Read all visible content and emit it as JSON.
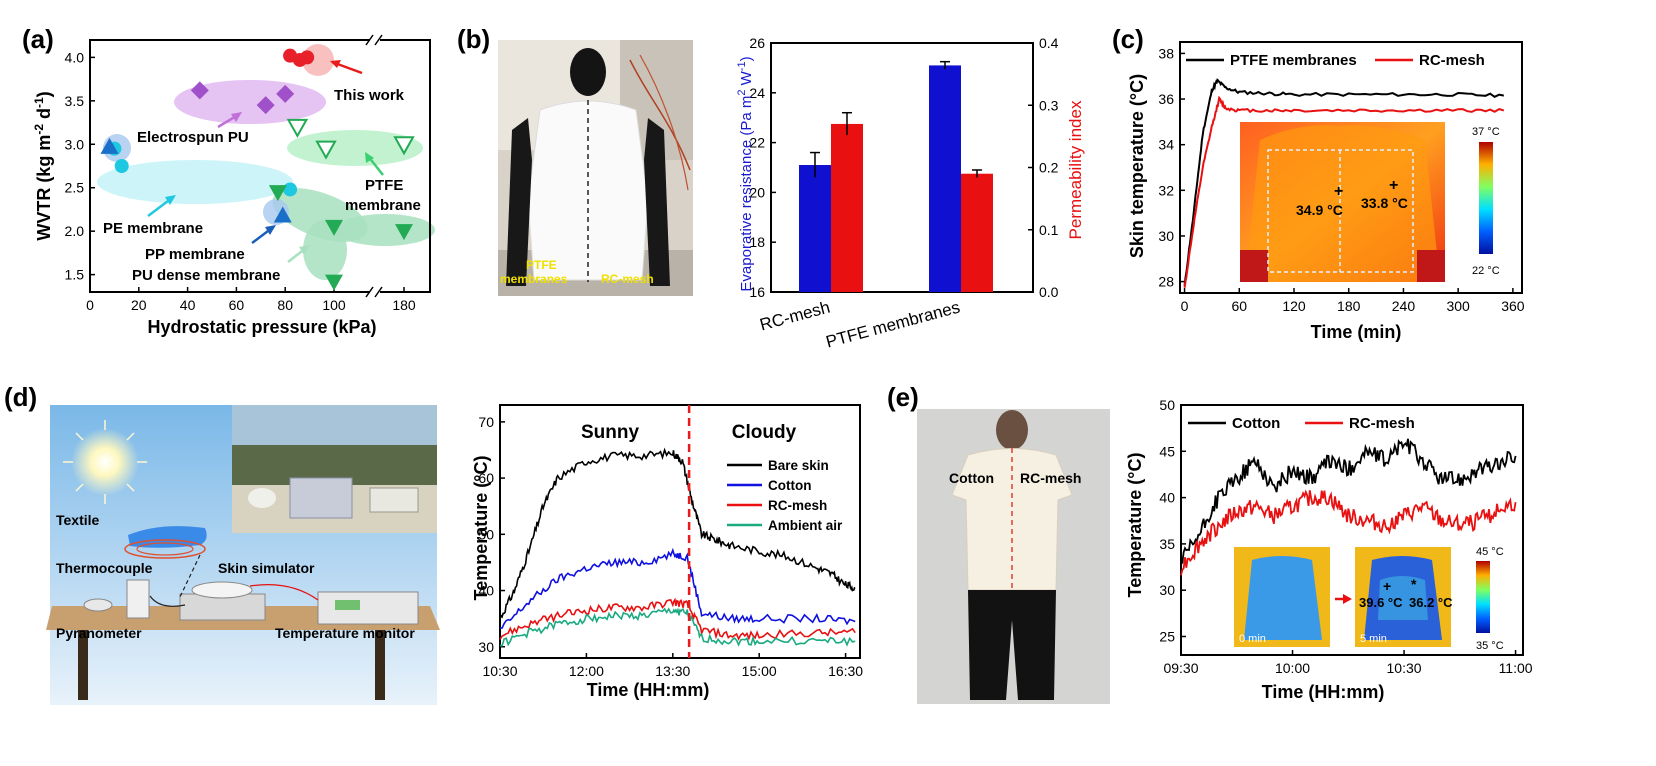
{
  "panel_labels": [
    "(a)",
    "(b)",
    "(c)",
    "(d)",
    "(e)"
  ],
  "chart_data": [
    {
      "panel": "(a)",
      "type": "scatter",
      "xlabel": "Hydrostatic pressure (kPa)",
      "ylabel": "WVTR (kg m-2 d-1)",
      "x_ticks": [
        "0",
        "20",
        "40",
        "60",
        "80",
        "100",
        "180"
      ],
      "y_ticks": [
        "1.5",
        "2.0",
        "2.5",
        "3.0",
        "3.5",
        "4.0"
      ],
      "xlim": [
        0,
        180
      ],
      "ylim": [
        1.3,
        4.2
      ],
      "axis_break": "between 100 and 180 kPa",
      "series": [
        {
          "name": "This work",
          "color": "#e8202a",
          "marker": "circle",
          "points": [
            [
              82,
              4.02
            ],
            [
              86,
              3.97
            ],
            [
              89,
              4.0
            ]
          ]
        },
        {
          "name": "Electrospun PU",
          "color": "#a050c8",
          "marker": "diamond",
          "points": [
            [
              45,
              3.62
            ],
            [
              72,
              3.45
            ],
            [
              80,
              3.58
            ]
          ]
        },
        {
          "name": "PTFE membrane",
          "color": "#22aa55",
          "marker": "triangle-down-open",
          "points": [
            [
              85,
              3.2
            ],
            [
              115,
              2.95
            ],
            [
              180,
              3.0
            ]
          ]
        },
        {
          "name": "PE membrane",
          "color": "#1ec8e0",
          "marker": "circle",
          "points": [
            [
              10,
              2.95
            ],
            [
              13,
              2.75
            ],
            [
              82,
              2.48
            ]
          ]
        },
        {
          "name": "PP membrane",
          "color": "#1a70c8",
          "marker": "triangle-up",
          "points": [
            [
              8,
              2.97
            ],
            [
              79,
              2.18
            ]
          ]
        },
        {
          "name": "PU dense membrane",
          "color": "#22aa55",
          "marker": "triangle-down",
          "points": [
            [
              77,
              2.45
            ],
            [
              100,
              2.05
            ],
            [
              180,
              2.0
            ],
            [
              100,
              1.42
            ]
          ]
        }
      ],
      "annotations": [
        "This work",
        "Electrospun PU",
        "PTFE membrane",
        "PE membrane",
        "PP membrane",
        "PU dense membrane"
      ]
    },
    {
      "panel": "(b)",
      "type": "bar",
      "categories": [
        "RC-mesh",
        "PTFE membranes"
      ],
      "series": [
        {
          "name": "Evaporative resistance",
          "axis": "left",
          "color": "#1010d0",
          "values": [
            21.1,
            25.1
          ],
          "errors": [
            0.5,
            0.15
          ]
        },
        {
          "name": "Permeability index",
          "axis": "right",
          "color": "#e81010",
          "values": [
            0.27,
            0.19
          ],
          "errors": [
            0.018,
            0.006
          ]
        }
      ],
      "ylabel_left": "Evaporative resistance (Pa m2 W-1)",
      "ylabel_right": "Permeability index",
      "ylim_left": [
        16,
        26
      ],
      "ylim_right": [
        0.0,
        0.4
      ],
      "y_ticks_left": [
        "16",
        "18",
        "20",
        "22",
        "24",
        "26"
      ],
      "y_ticks_right": [
        "0.0",
        "0.1",
        "0.2",
        "0.3",
        "0.4"
      ],
      "photo_labels": [
        "PTFE membranes",
        "RC-mesh"
      ]
    },
    {
      "panel": "(c)",
      "type": "line",
      "xlabel": "Time (min)",
      "ylabel": "Skin temperature (°C)",
      "xlim": [
        0,
        360
      ],
      "ylim": [
        27.5,
        38.5
      ],
      "x_ticks": [
        "0",
        "60",
        "120",
        "180",
        "240",
        "300",
        "360"
      ],
      "y_ticks": [
        "28",
        "30",
        "32",
        "34",
        "36",
        "38"
      ],
      "series": [
        {
          "name": "PTFE membranes",
          "color": "#000000",
          "x": [
            0,
            10,
            20,
            30,
            36,
            45,
            60,
            90,
            120,
            180,
            240,
            300,
            350
          ],
          "y": [
            27.8,
            31,
            34.5,
            36.4,
            36.8,
            36.5,
            36.3,
            36.25,
            36.2,
            36.2,
            36.2,
            36.2,
            36.15
          ]
        },
        {
          "name": "RC-mesh",
          "color": "#e81010",
          "x": [
            0,
            10,
            20,
            30,
            38,
            45,
            60,
            90,
            120,
            180,
            240,
            300,
            350
          ],
          "y": [
            27.7,
            30.5,
            33,
            34.8,
            36.0,
            35.6,
            35.5,
            35.5,
            35.5,
            35.5,
            35.5,
            35.5,
            35.5
          ]
        }
      ],
      "inset": {
        "scale_max": "37 °C",
        "scale_min": "22 °C",
        "readings": [
          "34.9 °C",
          "33.8 °C"
        ]
      }
    },
    {
      "panel": "(d)",
      "type": "line",
      "xlabel": "Time (HH:mm)",
      "ylabel": "Temperature (°C)",
      "xlim": [
        "10:30",
        "16:45"
      ],
      "ylim": [
        28,
        73
      ],
      "x_ticks": [
        "10:30",
        "12:00",
        "13:30",
        "15:00",
        "16:30"
      ],
      "y_ticks": [
        "30",
        "40",
        "50",
        "60",
        "70"
      ],
      "regions": [
        "Sunny",
        "Cloudy"
      ],
      "divider_time": "13:47",
      "series": [
        {
          "name": "Bare skin",
          "color": "#000000",
          "x": [
            "10:30",
            "10:45",
            "11:00",
            "11:15",
            "11:30",
            "12:00",
            "12:30",
            "13:00",
            "13:30",
            "13:40",
            "13:50",
            "14:00",
            "14:15",
            "14:30",
            "15:00",
            "15:30",
            "16:00",
            "16:15",
            "16:30",
            "16:40"
          ],
          "y": [
            35,
            40,
            47,
            55,
            60,
            63,
            64,
            64,
            64.5,
            63,
            56,
            50,
            49,
            48,
            47,
            46,
            44,
            43,
            41,
            40.5
          ]
        },
        {
          "name": "Cotton",
          "color": "#1010e0",
          "x": [
            "10:30",
            "11:00",
            "11:30",
            "12:00",
            "12:30",
            "13:00",
            "13:30",
            "13:45",
            "14:00",
            "14:30",
            "15:00",
            "16:00",
            "16:40"
          ],
          "y": [
            33,
            38,
            42,
            44,
            45,
            45,
            46.5,
            46,
            36,
            35,
            35,
            35,
            34.5
          ]
        },
        {
          "name": "RC-mesh",
          "color": "#e81010",
          "x": [
            "10:30",
            "11:00",
            "11:30",
            "12:00",
            "12:30",
            "13:00",
            "13:30",
            "13:45",
            "14:00",
            "14:30",
            "15:00",
            "16:00",
            "16:40"
          ],
          "y": [
            32,
            34,
            35.5,
            36.5,
            37,
            37,
            38,
            37.5,
            33,
            32,
            32,
            32.5,
            32.5
          ]
        },
        {
          "name": "Ambient air",
          "color": "#1aaa80",
          "x": [
            "10:30",
            "11:00",
            "11:30",
            "12:00",
            "12:30",
            "13:00",
            "13:30",
            "13:45",
            "14:00",
            "14:30",
            "15:00",
            "16:00",
            "16:40"
          ],
          "y": [
            30.5,
            32.5,
            34,
            35,
            35.5,
            35.5,
            36.5,
            36,
            31.5,
            31,
            31,
            31,
            31
          ]
        }
      ],
      "diagram_labels": [
        "Textile",
        "Thermocouple",
        "Skin simulator",
        "Pyranometer",
        "Temperature monitor"
      ]
    },
    {
      "panel": "(e)",
      "type": "line",
      "xlabel": "Time (HH:mm)",
      "ylabel": "Temperature (°C)",
      "xlim": [
        "09:30",
        "11:02"
      ],
      "ylim": [
        23,
        50
      ],
      "x_ticks": [
        "09:30",
        "10:00",
        "10:30",
        "11:00"
      ],
      "y_ticks": [
        "25",
        "30",
        "35",
        "40",
        "45",
        "50"
      ],
      "series": [
        {
          "name": "Cotton",
          "color": "#000000",
          "x": [
            "09:30",
            "09:35",
            "09:40",
            "09:45",
            "09:50",
            "09:55",
            "10:00",
            "10:05",
            "10:10",
            "10:15",
            "10:20",
            "10:25",
            "10:30",
            "10:35",
            "10:40",
            "10:45",
            "10:50",
            "10:55",
            "11:00"
          ],
          "y": [
            33,
            36,
            40,
            42,
            44,
            41,
            43,
            42,
            44,
            43,
            45,
            44,
            46,
            44,
            42,
            42,
            43,
            43.5,
            44.5
          ]
        },
        {
          "name": "RC-mesh",
          "color": "#e81010",
          "x": [
            "09:30",
            "09:35",
            "09:40",
            "09:45",
            "09:50",
            "09:55",
            "10:00",
            "10:05",
            "10:10",
            "10:15",
            "10:20",
            "10:25",
            "10:30",
            "10:35",
            "10:40",
            "10:45",
            "10:50",
            "10:55",
            "11:00"
          ],
          "y": [
            32.5,
            35,
            37,
            38.5,
            39,
            38,
            39,
            40,
            40,
            38,
            37.5,
            37,
            38,
            39,
            37.5,
            37,
            37.5,
            38.5,
            39.5
          ]
        }
      ],
      "photo_labels": [
        "Cotton",
        "RC-mesh"
      ],
      "inset": {
        "scale_max": "45 °C",
        "scale_min": "35 °C",
        "time_labels": [
          "0 min",
          "5 min"
        ],
        "readings": [
          "39.6 °C",
          "36.2 °C"
        ]
      }
    }
  ]
}
